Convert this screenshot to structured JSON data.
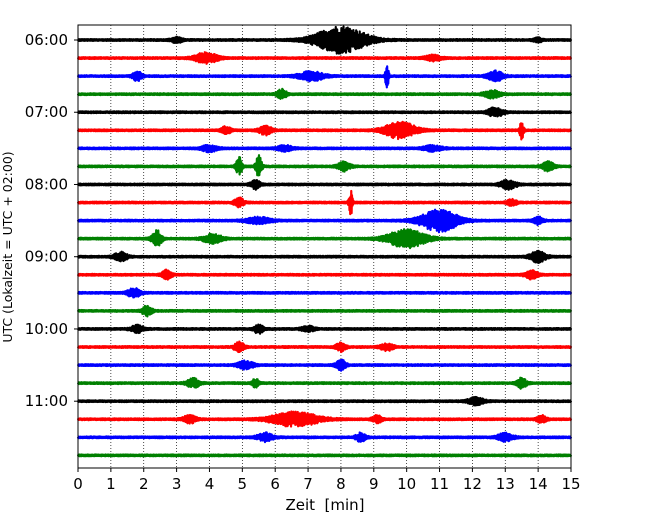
{
  "chart_data": {
    "type": "line",
    "title": "",
    "xlabel": "Zeit  [min]",
    "ylabel": "UTC (Lokalzeit = UTC + 02:00)",
    "xlim": [
      0,
      15
    ],
    "x_ticks": [
      "0",
      "1",
      "2",
      "3",
      "4",
      "5",
      "6",
      "7",
      "8",
      "9",
      "10",
      "11",
      "12",
      "13",
      "14",
      "15"
    ],
    "y_tick_labels": [
      "06:00",
      "07:00",
      "08:00",
      "09:00",
      "10:00",
      "11:00"
    ],
    "grid": {
      "x": true,
      "style": "dotted"
    },
    "trace_interval_minutes": 15,
    "series_colors": [
      "#000000",
      "#ff0000",
      "#0000ff",
      "#008000"
    ],
    "traces": [
      {
        "start": "06:00",
        "color": "#000000",
        "baseline_amp": 0.1,
        "events": [
          {
            "t": 3.0,
            "amp": 0.3,
            "dur": 0.35
          },
          {
            "t": 8.0,
            "amp": 1.5,
            "dur": 1.6
          },
          {
            "t": 14.0,
            "amp": 0.2,
            "dur": 0.3
          }
        ]
      },
      {
        "start": "06:15",
        "color": "#ff0000",
        "baseline_amp": 0.1,
        "events": [
          {
            "t": 3.9,
            "amp": 0.6,
            "dur": 0.7
          },
          {
            "t": 10.8,
            "amp": 0.3,
            "dur": 0.5
          }
        ]
      },
      {
        "start": "06:30",
        "color": "#0000ff",
        "baseline_amp": 0.1,
        "events": [
          {
            "t": 1.8,
            "amp": 0.5,
            "dur": 0.3
          },
          {
            "t": 7.1,
            "amp": 0.5,
            "dur": 0.8
          },
          {
            "t": 9.4,
            "amp": 1.5,
            "dur": 0.1
          },
          {
            "t": 12.7,
            "amp": 0.55,
            "dur": 0.5
          }
        ]
      },
      {
        "start": "06:45",
        "color": "#008000",
        "baseline_amp": 0.1,
        "events": [
          {
            "t": 6.2,
            "amp": 0.5,
            "dur": 0.3
          },
          {
            "t": 12.6,
            "amp": 0.4,
            "dur": 0.5
          }
        ]
      },
      {
        "start": "07:00",
        "color": "#000000",
        "baseline_amp": 0.1,
        "events": [
          {
            "t": 12.7,
            "amp": 0.5,
            "dur": 0.5
          }
        ]
      },
      {
        "start": "07:15",
        "color": "#ff0000",
        "baseline_amp": 0.1,
        "events": [
          {
            "t": 4.5,
            "amp": 0.4,
            "dur": 0.3
          },
          {
            "t": 5.7,
            "amp": 0.5,
            "dur": 0.4
          },
          {
            "t": 9.8,
            "amp": 0.9,
            "dur": 1.0
          },
          {
            "t": 13.5,
            "amp": 1.0,
            "dur": 0.12
          }
        ]
      },
      {
        "start": "07:30",
        "color": "#0000ff",
        "baseline_amp": 0.1,
        "events": [
          {
            "t": 4.0,
            "amp": 0.35,
            "dur": 0.5
          },
          {
            "t": 6.3,
            "amp": 0.3,
            "dur": 0.5
          },
          {
            "t": 10.8,
            "amp": 0.3,
            "dur": 0.6
          }
        ]
      },
      {
        "start": "07:45",
        "color": "#008000",
        "baseline_amp": 0.1,
        "events": [
          {
            "t": 4.9,
            "amp": 1.1,
            "dur": 0.18
          },
          {
            "t": 5.5,
            "amp": 1.2,
            "dur": 0.18
          },
          {
            "t": 8.1,
            "amp": 0.5,
            "dur": 0.4
          },
          {
            "t": 14.3,
            "amp": 0.5,
            "dur": 0.4
          }
        ]
      },
      {
        "start": "08:00",
        "color": "#000000",
        "baseline_amp": 0.1,
        "events": [
          {
            "t": 5.4,
            "amp": 0.5,
            "dur": 0.3
          },
          {
            "t": 13.1,
            "amp": 0.5,
            "dur": 0.5
          }
        ]
      },
      {
        "start": "08:15",
        "color": "#ff0000",
        "baseline_amp": 0.1,
        "events": [
          {
            "t": 4.9,
            "amp": 0.5,
            "dur": 0.3
          },
          {
            "t": 8.3,
            "amp": 1.3,
            "dur": 0.12
          },
          {
            "t": 13.2,
            "amp": 0.35,
            "dur": 0.3
          }
        ]
      },
      {
        "start": "08:30",
        "color": "#0000ff",
        "baseline_amp": 0.1,
        "events": [
          {
            "t": 5.5,
            "amp": 0.35,
            "dur": 0.8
          },
          {
            "t": 11.0,
            "amp": 1.2,
            "dur": 1.2
          },
          {
            "t": 14.0,
            "amp": 0.4,
            "dur": 0.3
          }
        ]
      },
      {
        "start": "08:45",
        "color": "#008000",
        "baseline_amp": 0.1,
        "events": [
          {
            "t": 2.4,
            "amp": 0.9,
            "dur": 0.3
          },
          {
            "t": 4.1,
            "amp": 0.5,
            "dur": 0.6
          },
          {
            "t": 10.0,
            "amp": 1.0,
            "dur": 1.2
          }
        ]
      },
      {
        "start": "09:00",
        "color": "#000000",
        "baseline_amp": 0.1,
        "events": [
          {
            "t": 1.3,
            "amp": 0.5,
            "dur": 0.4
          },
          {
            "t": 14.0,
            "amp": 0.6,
            "dur": 0.5
          }
        ]
      },
      {
        "start": "09:15",
        "color": "#ff0000",
        "baseline_amp": 0.1,
        "events": [
          {
            "t": 2.7,
            "amp": 0.5,
            "dur": 0.3
          },
          {
            "t": 13.8,
            "amp": 0.45,
            "dur": 0.4
          }
        ]
      },
      {
        "start": "09:30",
        "color": "#0000ff",
        "baseline_amp": 0.1,
        "events": [
          {
            "t": 1.7,
            "amp": 0.5,
            "dur": 0.4
          }
        ]
      },
      {
        "start": "09:45",
        "color": "#008000",
        "baseline_amp": 0.1,
        "events": [
          {
            "t": 2.1,
            "amp": 0.55,
            "dur": 0.3
          }
        ]
      },
      {
        "start": "10:00",
        "color": "#000000",
        "baseline_amp": 0.1,
        "events": [
          {
            "t": 1.8,
            "amp": 0.4,
            "dur": 0.4
          },
          {
            "t": 5.5,
            "amp": 0.5,
            "dur": 0.3
          },
          {
            "t": 7.0,
            "amp": 0.3,
            "dur": 0.4
          }
        ]
      },
      {
        "start": "10:15",
        "color": "#ff0000",
        "baseline_amp": 0.1,
        "events": [
          {
            "t": 4.9,
            "amp": 0.6,
            "dur": 0.3
          },
          {
            "t": 8.0,
            "amp": 0.5,
            "dur": 0.3
          },
          {
            "t": 9.4,
            "amp": 0.4,
            "dur": 0.4
          }
        ]
      },
      {
        "start": "10:30",
        "color": "#0000ff",
        "baseline_amp": 0.1,
        "events": [
          {
            "t": 5.1,
            "amp": 0.45,
            "dur": 0.5
          },
          {
            "t": 8.0,
            "amp": 0.6,
            "dur": 0.3
          }
        ]
      },
      {
        "start": "10:45",
        "color": "#008000",
        "baseline_amp": 0.1,
        "events": [
          {
            "t": 3.5,
            "amp": 0.5,
            "dur": 0.4
          },
          {
            "t": 5.4,
            "amp": 0.5,
            "dur": 0.2
          },
          {
            "t": 13.5,
            "amp": 0.55,
            "dur": 0.3
          }
        ]
      },
      {
        "start": "11:00",
        "color": "#000000",
        "baseline_amp": 0.1,
        "events": [
          {
            "t": 12.1,
            "amp": 0.4,
            "dur": 0.5
          }
        ]
      },
      {
        "start": "11:15",
        "color": "#ff0000",
        "baseline_amp": 0.1,
        "events": [
          {
            "t": 3.4,
            "amp": 0.45,
            "dur": 0.4
          },
          {
            "t": 6.6,
            "amp": 0.8,
            "dur": 1.5
          },
          {
            "t": 9.1,
            "amp": 0.4,
            "dur": 0.3
          },
          {
            "t": 14.1,
            "amp": 0.4,
            "dur": 0.3
          }
        ]
      },
      {
        "start": "11:30",
        "color": "#0000ff",
        "baseline_amp": 0.1,
        "events": [
          {
            "t": 5.7,
            "amp": 0.45,
            "dur": 0.5
          },
          {
            "t": 8.6,
            "amp": 0.5,
            "dur": 0.3
          },
          {
            "t": 13.0,
            "amp": 0.45,
            "dur": 0.5
          }
        ]
      },
      {
        "start": "11:45",
        "color": "#008000",
        "baseline_amp": 0.1,
        "events": []
      }
    ]
  }
}
